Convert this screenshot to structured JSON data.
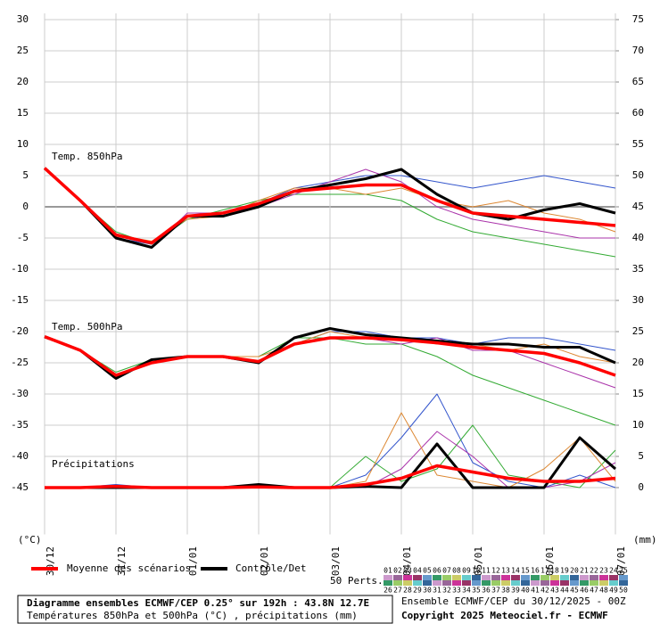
{
  "chart_data": {
    "type": "line",
    "x": [
      0,
      12,
      24,
      36,
      48,
      60,
      72,
      84,
      96,
      108,
      120,
      132,
      144,
      156,
      168,
      180,
      192
    ],
    "xlim": [
      0,
      192
    ],
    "xticks": [
      {
        "value": 0,
        "label": "30/12"
      },
      {
        "value": 24,
        "label": "31/12"
      },
      {
        "value": 48,
        "label": "01/01"
      },
      {
        "value": 72,
        "label": "02/01"
      },
      {
        "value": 96,
        "label": "03/01"
      },
      {
        "value": 120,
        "label": "04/01"
      },
      {
        "value": 144,
        "label": "05/01"
      },
      {
        "value": 168,
        "label": "06/01"
      },
      {
        "value": 192,
        "label": "07/01"
      }
    ],
    "ylim": [
      -52.5,
      31
    ],
    "yticks": [
      -45,
      -40,
      -35,
      -30,
      -25,
      -20,
      -15,
      -10,
      -5,
      0,
      5,
      10,
      15,
      20,
      25,
      30
    ],
    "y2lim": [
      -7.5,
      76
    ],
    "y2ticks": [
      0,
      5,
      10,
      15,
      20,
      25,
      30,
      35,
      40,
      45,
      50,
      55,
      60,
      65,
      70,
      75
    ],
    "y_label": "(°C)",
    "y2_label": "(mm)",
    "grid": true,
    "annotations": [
      "Temp. 850hPa",
      "Temp. 500hPa",
      "Précipitations"
    ],
    "series": [
      {
        "color": "#3355cc",
        "width": 1,
        "values": [
          6,
          1,
          -5,
          -6,
          -2,
          -1,
          0.5,
          3,
          4,
          5,
          5,
          4,
          3,
          4,
          5,
          4,
          3
        ]
      },
      {
        "color": "#33aa33",
        "width": 1,
        "values": [
          6,
          1,
          -4,
          -6,
          -2,
          -0.5,
          1,
          2,
          2,
          2,
          1,
          -2,
          -4,
          -5,
          -6,
          -7,
          -8
        ]
      },
      {
        "color": "#aa33aa",
        "width": 1,
        "values": [
          6,
          1,
          -5,
          -6.5,
          -1,
          -1,
          0,
          2,
          4,
          6,
          4,
          0,
          -2,
          -3,
          -4,
          -5,
          -5
        ]
      },
      {
        "color": "#dd8833",
        "width": 1,
        "values": [
          6,
          1,
          -4.5,
          -5.5,
          -2,
          -1.5,
          1,
          3,
          3,
          2,
          3,
          1,
          0,
          1,
          -1,
          -2,
          -4
        ]
      },
      {
        "color": "#3355cc",
        "width": 1,
        "values": [
          -21,
          -23,
          -27,
          -25,
          -24,
          -24,
          -25,
          -22,
          -20,
          -20,
          -21,
          -21,
          -22,
          -21,
          -21,
          -22,
          -23
        ]
      },
      {
        "color": "#33aa33",
        "width": 1,
        "values": [
          -21,
          -23,
          -26.5,
          -24.5,
          -24,
          -24,
          -24,
          -21,
          -21,
          -22,
          -22,
          -24,
          -27,
          -29,
          -31,
          -33,
          -35
        ]
      },
      {
        "color": "#aa33aa",
        "width": 1,
        "values": [
          -21,
          -23,
          -27,
          -25,
          -24,
          -24,
          -25,
          -22,
          -21,
          -21,
          -22,
          -21,
          -23,
          -23,
          -25,
          -27,
          -29
        ]
      },
      {
        "color": "#dd8833",
        "width": 1,
        "values": [
          -21,
          -23,
          -27,
          -25,
          -24,
          -24,
          -24,
          -22,
          -20,
          -21,
          -21,
          -22,
          -22,
          -23,
          -22,
          -24,
          -25
        ]
      },
      {
        "color": "#3355cc",
        "width": 1,
        "axis": "y2",
        "values": [
          0,
          0,
          0.5,
          0,
          0,
          0,
          0,
          0,
          0,
          2,
          8,
          15,
          4,
          1,
          0,
          2,
          0
        ]
      },
      {
        "color": "#33aa33",
        "width": 1,
        "axis": "y2",
        "values": [
          0,
          0,
          0,
          0,
          0,
          0,
          0,
          0,
          0,
          5,
          1,
          3,
          10,
          2,
          1,
          0,
          6
        ]
      },
      {
        "color": "#aa33aa",
        "width": 1,
        "axis": "y2",
        "values": [
          0,
          0,
          0,
          0,
          0,
          0,
          0,
          0,
          0,
          0,
          3,
          9,
          5,
          0,
          0,
          1,
          4
        ]
      },
      {
        "color": "#dd8833",
        "width": 1,
        "axis": "y2",
        "values": [
          0,
          0,
          0.3,
          0,
          0,
          0,
          0,
          0,
          0,
          1,
          12,
          2,
          1,
          0,
          3,
          8,
          1
        ]
      },
      {
        "name": "Contrôle/Det",
        "color": "#000000",
        "width": 3,
        "values": [
          6.2,
          1,
          -5,
          -6.5,
          -1.5,
          -1.5,
          0,
          2.5,
          3.5,
          4.5,
          6,
          2,
          -1,
          -2,
          -0.5,
          0.5,
          -1
        ]
      },
      {
        "color": "#000000",
        "width": 3,
        "values": [
          -20.8,
          -23,
          -27.5,
          -24.5,
          -24,
          -24,
          -25,
          -21,
          -19.5,
          -20.5,
          -21,
          -21.5,
          -22,
          -22,
          -22.5,
          -22.5,
          -25
        ]
      },
      {
        "color": "#000000",
        "width": 3,
        "axis": "y2",
        "values": [
          0,
          0,
          0,
          0,
          0,
          0,
          0.5,
          0,
          0,
          0.2,
          0,
          7,
          0,
          0,
          0,
          8,
          3
        ]
      },
      {
        "name": "Moyenne des scénarios",
        "color": "#ff0000",
        "width": 3.5,
        "values": [
          6.2,
          1,
          -4.5,
          -5.8,
          -1.5,
          -1,
          0.5,
          2.5,
          3,
          3.5,
          3.5,
          1,
          -1,
          -1.5,
          -2,
          -2.5,
          -3
        ]
      },
      {
        "color": "#ff0000",
        "width": 3.5,
        "values": [
          -20.8,
          -23,
          -27,
          -25,
          -24,
          -24,
          -24.8,
          -22,
          -21,
          -21,
          -21.3,
          -21.8,
          -22.5,
          -23,
          -23.5,
          -25,
          -27
        ]
      },
      {
        "color": "#ff0000",
        "width": 3.5,
        "axis": "y2",
        "values": [
          0,
          0,
          0.2,
          0,
          0,
          0,
          0.1,
          0,
          0,
          0.5,
          1.5,
          3.5,
          2.5,
          1.5,
          1,
          1,
          1.5
        ]
      }
    ],
    "perturbations_title": "50 Perts.",
    "perturbations": [
      "01",
      "02",
      "03",
      "04",
      "05",
      "06",
      "07",
      "08",
      "09",
      "10",
      "11",
      "12",
      "13",
      "14",
      "15",
      "16",
      "17",
      "18",
      "19",
      "20",
      "21",
      "22",
      "23",
      "24",
      "25",
      "26",
      "27",
      "28",
      "29",
      "30",
      "31",
      "32",
      "33",
      "34",
      "35",
      "36",
      "37",
      "38",
      "39",
      "40",
      "41",
      "42",
      "43",
      "44",
      "45",
      "46",
      "47",
      "48",
      "49",
      "50"
    ],
    "perturbation_palette": [
      "#cc99cc",
      "#996699",
      "#cc3399",
      "#993366",
      "#6699cc",
      "#339966",
      "#99cc66",
      "#cccc66",
      "#66cccc",
      "#336699"
    ]
  },
  "footer": {
    "title": "Diagramme ensembles ECMWF/CEP 0.25° sur 192h : 43.8N 12.7E",
    "subtitle": "Températures 850hPa et 500hPa (°C) , précipitations (mm)",
    "run": "Ensemble ECMWF/CEP du 30/12/2025 - 00Z",
    "copyright": "Copyright 2025 Meteociel.fr - ECMWF"
  }
}
